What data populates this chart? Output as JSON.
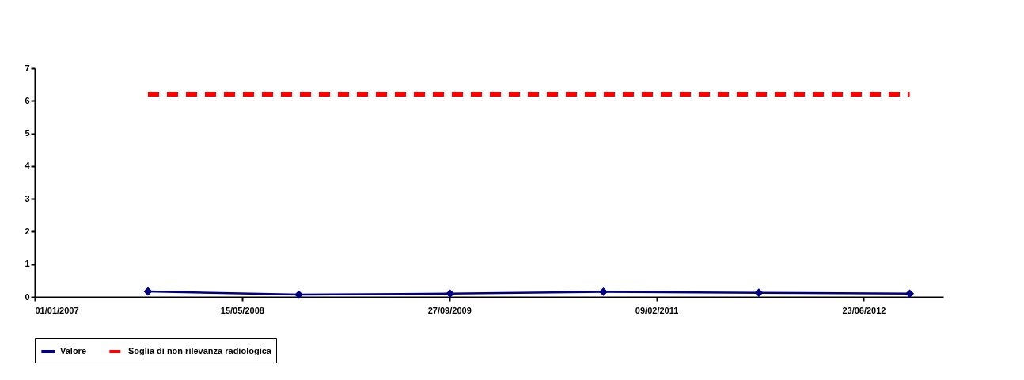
{
  "chart_data": {
    "type": "line",
    "x": [
      "2007-10-01",
      "2008-09-29",
      "2009-09-29",
      "2010-10-04",
      "2011-10-14",
      "2012-10-12"
    ],
    "series": [
      {
        "name": "Valore",
        "color": "#000080",
        "values": [
          0.17,
          0.07,
          0.1,
          0.16,
          0.13,
          0.1
        ],
        "marker": "diamond",
        "line_style": "solid"
      },
      {
        "name": "Soglia di non rilevanza radiologica",
        "color": "#ff0000",
        "values": [
          6.2,
          6.2,
          6.2,
          6.2,
          6.2,
          6.2
        ],
        "marker": "none",
        "line_style": "dashed"
      }
    ],
    "xlim": [
      "2007-01-01",
      "2013-01-01"
    ],
    "xticks": [
      {
        "value": "2007-01-01",
        "label": "01/01/2007"
      },
      {
        "value": "2008-05-15",
        "label": "15/05/2008"
      },
      {
        "value": "2009-09-27",
        "label": "27/09/2009"
      },
      {
        "value": "2011-02-09",
        "label": "09/02/2011"
      },
      {
        "value": "2012-06-23",
        "label": "23/06/2012"
      }
    ],
    "ylim": [
      0,
      7
    ],
    "yticks": [
      0,
      1,
      2,
      3,
      4,
      5,
      6,
      7
    ],
    "grid": false,
    "legend": "bottom"
  }
}
